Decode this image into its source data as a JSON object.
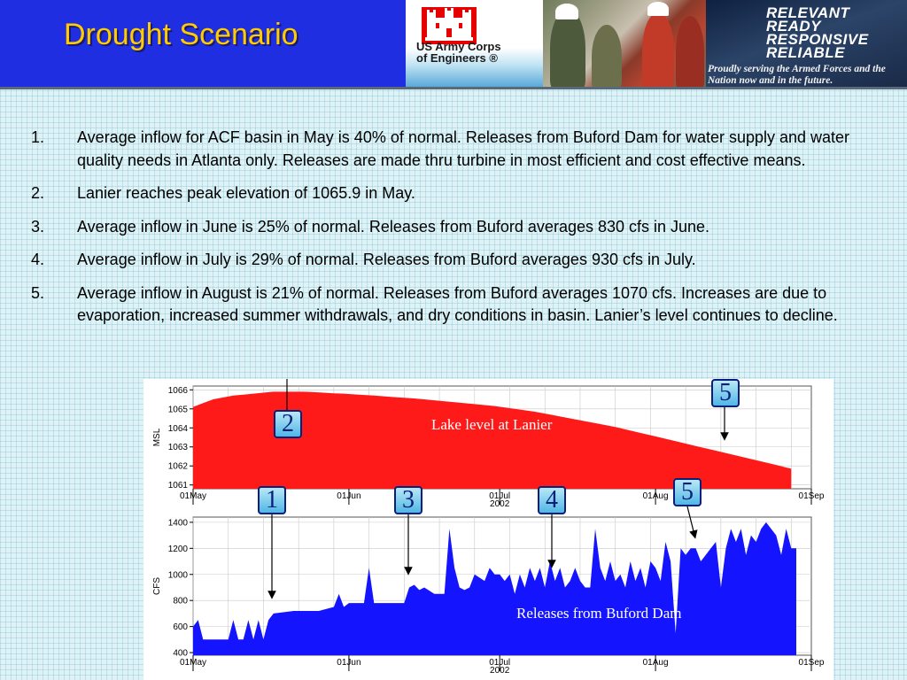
{
  "header": {
    "title": "Drought Scenario",
    "logo_text_line1": "US Army Corps",
    "logo_text_line2": "of Engineers ®",
    "slogan_lines": [
      "RELEVANT",
      "READY",
      "RESPONSIVE",
      "RELIABLE"
    ],
    "slogan_sub": "Proudly serving the Armed Forces and the Nation now and in the future."
  },
  "notes": [
    {
      "num": "1.",
      "text": "Average inflow for ACF basin in May is 40% of normal.  Releases from Buford Dam for water supply and water quality needs in Atlanta only.  Releases are made thru turbine in most efficient and cost effective means."
    },
    {
      "num": "2.",
      "text": "Lanier reaches peak elevation of 1065.9 in May."
    },
    {
      "num": "3.",
      "text": "Average inflow in June is 25% of normal.  Releases from Buford averages 830 cfs in June."
    },
    {
      "num": "4.",
      "text": "Average inflow in July is 29% of normal.  Releases from Buford averages 930 cfs in July."
    },
    {
      "num": "5.",
      "text": "Average inflow in August  is 21% of normal.  Releases from Buford averages 1070 cfs.  Increases are due to evaporation, increased summer withdrawals, and dry conditions in basin.  Lanier’s level continues to decline."
    }
  ],
  "colors": {
    "lake_fill": "#ff1a1a",
    "release_fill": "#1414ff",
    "grid": "#c8c8c8",
    "callout_border": "#0b1f7a"
  },
  "callouts": [
    "1",
    "2",
    "3",
    "4",
    "5",
    "5"
  ],
  "chart_data": [
    {
      "type": "area",
      "label": "Lake level at Lanier",
      "ylabel": "MSL",
      "ylim": [
        1060.8,
        1066.2
      ],
      "yticks": [
        1061,
        1062,
        1063,
        1064,
        1065,
        1066
      ],
      "xlim": [
        0,
        123
      ],
      "xticks": [
        {
          "day": 0,
          "label": "01May"
        },
        {
          "day": 31,
          "label": "01Jun"
        },
        {
          "day": 61,
          "label": "01Jul"
        },
        {
          "day": 92,
          "label": "01Aug"
        },
        {
          "day": 123,
          "label": "01Sep"
        }
      ],
      "year_label": "2002",
      "year_day": 61,
      "grid": true,
      "x": [
        0,
        2,
        4,
        6,
        8,
        10,
        12,
        14,
        16,
        18,
        20,
        22,
        24,
        26,
        28,
        30,
        33,
        36,
        40,
        44,
        48,
        52,
        56,
        60,
        64,
        68,
        72,
        76,
        80,
        84,
        88,
        92,
        96,
        100,
        104,
        108,
        112,
        116,
        119
      ],
      "y": [
        1065.1,
        1065.3,
        1065.5,
        1065.6,
        1065.7,
        1065.75,
        1065.8,
        1065.85,
        1065.9,
        1065.9,
        1065.9,
        1065.9,
        1065.88,
        1065.85,
        1065.82,
        1065.8,
        1065.75,
        1065.7,
        1065.62,
        1065.55,
        1065.45,
        1065.35,
        1065.25,
        1065.15,
        1065.0,
        1064.85,
        1064.65,
        1064.45,
        1064.25,
        1064.05,
        1063.8,
        1063.55,
        1063.3,
        1063.05,
        1062.8,
        1062.55,
        1062.3,
        1062.05,
        1061.85
      ]
    },
    {
      "type": "area",
      "label": "Releases from Buford Dam",
      "ylabel": "CFS",
      "ylim": [
        380,
        1440
      ],
      "yticks": [
        400,
        600,
        800,
        1000,
        1200,
        1400
      ],
      "xlim": [
        0,
        123
      ],
      "xticks": [
        {
          "day": 0,
          "label": "01May"
        },
        {
          "day": 31,
          "label": "01Jun"
        },
        {
          "day": 61,
          "label": "01Jul"
        },
        {
          "day": 92,
          "label": "01Aug"
        },
        {
          "day": 123,
          "label": "01Sep"
        }
      ],
      "year_label": "2002",
      "year_day": 61,
      "grid": true,
      "x": [
        0,
        1,
        2,
        3,
        7,
        8,
        9,
        10,
        11,
        12,
        13,
        14,
        15,
        16,
        20,
        25,
        28,
        29,
        30,
        31,
        34,
        35,
        36,
        40,
        42,
        43,
        44,
        45,
        46,
        48,
        50,
        51,
        52,
        53,
        54,
        55,
        56,
        58,
        59,
        60,
        61,
        62,
        63,
        64,
        65,
        66,
        67,
        68,
        69,
        70,
        71,
        72,
        73,
        74,
        75,
        76,
        77,
        78,
        79,
        80,
        81,
        82,
        83,
        84,
        85,
        86,
        87,
        88,
        89,
        90,
        91,
        92,
        93,
        94,
        95,
        96,
        97,
        98,
        99,
        100,
        101,
        102,
        103,
        104,
        105,
        106,
        107,
        108,
        109,
        110,
        111,
        112,
        113,
        114,
        115,
        116,
        117,
        118,
        119,
        120
      ],
      "y": [
        600,
        650,
        500,
        500,
        500,
        650,
        500,
        500,
        650,
        500,
        650,
        500,
        650,
        700,
        720,
        720,
        750,
        850,
        750,
        780,
        780,
        1050,
        780,
        780,
        780,
        900,
        920,
        880,
        900,
        850,
        850,
        1350,
        1050,
        900,
        880,
        900,
        1000,
        950,
        1050,
        1000,
        1000,
        950,
        1000,
        850,
        1000,
        900,
        1050,
        950,
        1050,
        900,
        1100,
        950,
        1050,
        900,
        950,
        1050,
        950,
        900,
        900,
        1350,
        1050,
        950,
        1100,
        950,
        1000,
        900,
        1100,
        950,
        1050,
        900,
        1100,
        1050,
        950,
        1250,
        1100,
        550,
        1200,
        1150,
        1200,
        1200,
        1100,
        1150,
        1200,
        1250,
        900,
        1200,
        1350,
        1250,
        1350,
        1150,
        1300,
        1250,
        1350,
        1400,
        1350,
        1300,
        1150,
        1350,
        1200,
        1200
      ]
    }
  ]
}
